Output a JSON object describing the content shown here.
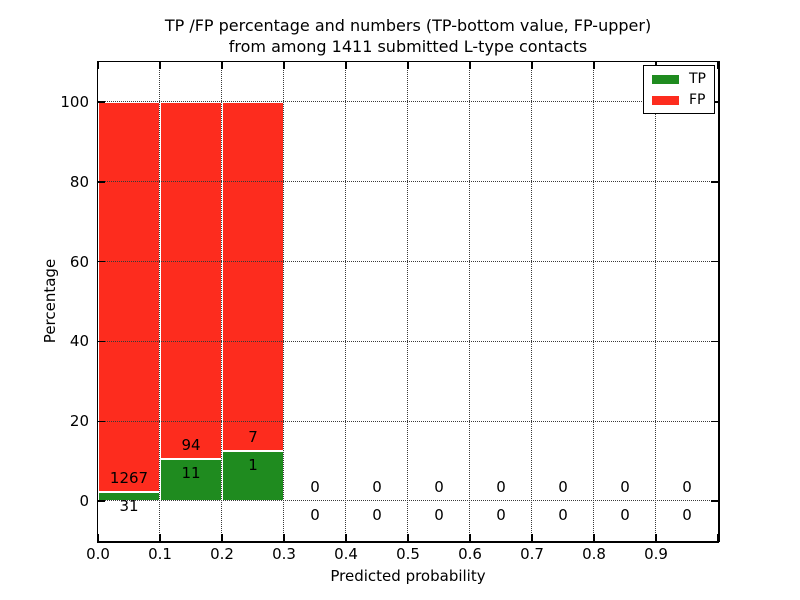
{
  "figure": {
    "title_line1": "TP /FP percentage and numbers (TP-bottom value, FP-upper)",
    "title_line2": "from among 1411 submitted L-type contacts",
    "xlabel": "Predicted probability",
    "ylabel": "Percentage"
  },
  "legend": {
    "position": "upper right",
    "items": [
      {
        "label": "TP",
        "color": "#1f8b1f"
      },
      {
        "label": "FP",
        "color": "#fd2c1e"
      }
    ]
  },
  "chart_data": {
    "type": "bar",
    "stacked": true,
    "units": "percent_of_bin_total",
    "title": "TP /FP percentage and numbers (TP-bottom value, FP-upper) from among 1411 submitted L-type contacts",
    "xlabel": "Predicted probability",
    "ylabel": "Percentage",
    "grid": "dotted",
    "legend_position": "upper right",
    "xlim": [
      0.0,
      1.0
    ],
    "ylim": [
      -10,
      110
    ],
    "bin_width": 0.1,
    "xtick_labels": [
      "0.0",
      "0.1",
      "0.2",
      "0.3",
      "0.4",
      "0.5",
      "0.6",
      "0.7",
      "0.8",
      "0.9"
    ],
    "ytick_values": [
      0,
      20,
      40,
      60,
      80,
      100
    ],
    "total_contacts": 1411,
    "series": [
      {
        "name": "TP",
        "color": "#1f8b1f",
        "counts": [
          31,
          11,
          1,
          0,
          0,
          0,
          0,
          0,
          0,
          0
        ]
      },
      {
        "name": "FP",
        "color": "#fd2c1e",
        "counts": [
          1267,
          94,
          7,
          0,
          0,
          0,
          0,
          0,
          0,
          0
        ]
      }
    ],
    "bins": [
      {
        "start": 0.0,
        "end": 0.1,
        "tp": 31,
        "fp": 1267,
        "tp_pct": 2.39,
        "fp_pct": 97.61
      },
      {
        "start": 0.1,
        "end": 0.2,
        "tp": 11,
        "fp": 94,
        "tp_pct": 10.48,
        "fp_pct": 89.52
      },
      {
        "start": 0.2,
        "end": 0.3,
        "tp": 1,
        "fp": 7,
        "tp_pct": 12.5,
        "fp_pct": 87.5
      },
      {
        "start": 0.3,
        "end": 0.4,
        "tp": 0,
        "fp": 0,
        "tp_pct": 0,
        "fp_pct": 0
      },
      {
        "start": 0.4,
        "end": 0.5,
        "tp": 0,
        "fp": 0,
        "tp_pct": 0,
        "fp_pct": 0
      },
      {
        "start": 0.5,
        "end": 0.6,
        "tp": 0,
        "fp": 0,
        "tp_pct": 0,
        "fp_pct": 0
      },
      {
        "start": 0.6,
        "end": 0.7,
        "tp": 0,
        "fp": 0,
        "tp_pct": 0,
        "fp_pct": 0
      },
      {
        "start": 0.7,
        "end": 0.8,
        "tp": 0,
        "fp": 0,
        "tp_pct": 0,
        "fp_pct": 0
      },
      {
        "start": 0.8,
        "end": 0.9,
        "tp": 0,
        "fp": 0,
        "tp_pct": 0,
        "fp_pct": 0
      },
      {
        "start": 0.9,
        "end": 1.0,
        "tp": 0,
        "fp": 0,
        "tp_pct": 0,
        "fp_pct": 0
      }
    ]
  }
}
